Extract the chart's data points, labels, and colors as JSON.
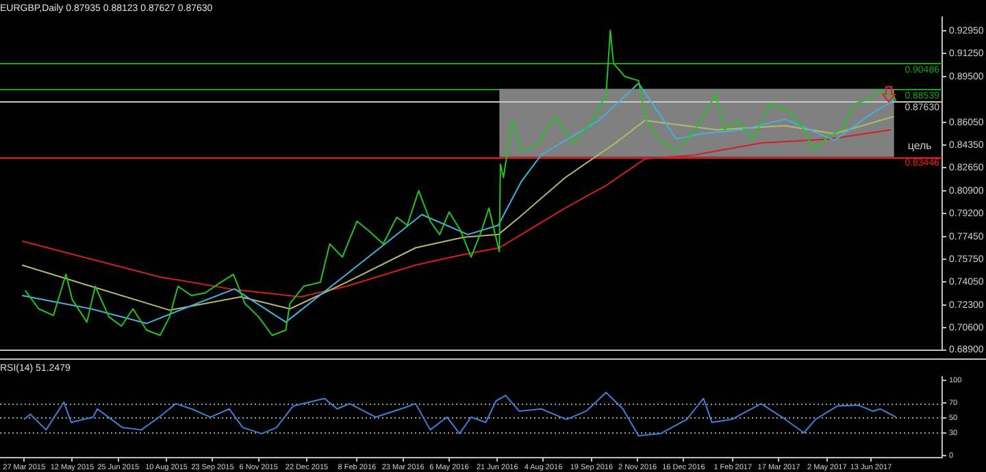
{
  "chart_data": [
    {
      "type": "line",
      "title": "EURGBP,Daily 0.87935 0.88123 0.87627 0.87630",
      "xlim": [
        "2015-03-04",
        "2017-08-20"
      ],
      "ylim": [
        0.689,
        0.94
      ],
      "yticks": [
        {
          "value": 0.9295,
          "label": "0.92950"
        },
        {
          "value": 0.9125,
          "label": "0.91250"
        },
        {
          "value": 0.895,
          "label": "0.89500"
        },
        {
          "value": 0.8605,
          "label": "0.86050"
        },
        {
          "value": 0.8435,
          "label": "0.84350"
        },
        {
          "value": 0.8265,
          "label": "0.82650"
        },
        {
          "value": 0.809,
          "label": "0.80900"
        },
        {
          "value": 0.792,
          "label": "0.79200"
        },
        {
          "value": 0.7745,
          "label": "0.77450"
        },
        {
          "value": 0.7575,
          "label": "0.75750"
        },
        {
          "value": 0.7405,
          "label": "0.74050"
        },
        {
          "value": 0.723,
          "label": "0.72300"
        },
        {
          "value": 0.706,
          "label": "0.70600"
        },
        {
          "value": 0.689,
          "label": "0.68900"
        }
      ],
      "tick_labels": "y",
      "marker": "none",
      "series": [
        {
          "color": "#22c422",
          "x": [
            "2015-03-28",
            "2015-04-10",
            "2015-04-24",
            "2015-05-06",
            "2015-05-12",
            "2015-05-26",
            "2015-06-03",
            "2015-06-16",
            "2015-06-28",
            "2015-07-09",
            "2015-07-22",
            "2015-08-04",
            "2015-08-13",
            "2015-08-21",
            "2015-09-03",
            "2015-09-16",
            "2015-10-01",
            "2015-10-13",
            "2015-10-24",
            "2015-11-06",
            "2015-11-19",
            "2015-12-02",
            "2015-12-06",
            "2015-12-19",
            "2016-01-04",
            "2016-01-13",
            "2016-01-25",
            "2016-02-08",
            "2016-02-19",
            "2016-03-04",
            "2016-03-17",
            "2016-03-27",
            "2016-04-07",
            "2016-04-18",
            "2016-04-27",
            "2016-05-06",
            "2016-05-17",
            "2016-05-27",
            "2016-06-06",
            "2016-06-13",
            "2016-06-23",
            "2016-06-24",
            "2016-06-27",
            "2016-07-05",
            "2016-07-14",
            "2016-07-28",
            "2016-08-15",
            "2016-09-02",
            "2016-09-20",
            "2016-10-03",
            "2016-10-07",
            "2016-10-10",
            "2016-10-21",
            "2016-11-03",
            "2016-11-10",
            "2016-11-22",
            "2016-12-09",
            "2016-12-27",
            "2017-01-16",
            "2017-01-24",
            "2017-02-06",
            "2017-02-20",
            "2017-03-09",
            "2017-03-27",
            "2017-04-10",
            "2017-04-19",
            "2017-05-01",
            "2017-05-15",
            "2017-05-29",
            "2017-06-12",
            "2017-06-19",
            "2017-06-28",
            "2017-07-05",
            "2017-07-07"
          ],
          "values": [
            0.734,
            0.72,
            0.715,
            0.746,
            0.727,
            0.71,
            0.737,
            0.714,
            0.707,
            0.72,
            0.704,
            0.7,
            0.714,
            0.737,
            0.73,
            0.732,
            0.74,
            0.746,
            0.724,
            0.714,
            0.7,
            0.704,
            0.724,
            0.737,
            0.74,
            0.769,
            0.759,
            0.786,
            0.779,
            0.769,
            0.789,
            0.783,
            0.809,
            0.786,
            0.776,
            0.793,
            0.779,
            0.759,
            0.779,
            0.796,
            0.763,
            0.829,
            0.819,
            0.862,
            0.839,
            0.843,
            0.865,
            0.845,
            0.862,
            0.882,
            0.93,
            0.905,
            0.895,
            0.892,
            0.862,
            0.848,
            0.839,
            0.855,
            0.882,
            0.855,
            0.862,
            0.848,
            0.875,
            0.868,
            0.855,
            0.839,
            0.848,
            0.855,
            0.875,
            0.878,
            0.885,
            0.882,
            0.88,
            0.876
          ]
        },
        {
          "color": "#808080",
          "x": [
            "2016-06-23",
            "2017-07-05"
          ],
          "values": [
            0.8854,
            0.8854
          ],
          "lower": [
            0.8345,
            0.8345
          ],
          "upper": [
            0.8854,
            0.8854
          ]
        },
        {
          "color": "#3fb4e0",
          "x": [
            "2015-03-25",
            "2015-05-30",
            "2015-07-22",
            "2015-08-26",
            "2015-10-14",
            "2015-12-02",
            "2016-01-29",
            "2016-04-10",
            "2016-05-24",
            "2016-06-22",
            "2016-07-14",
            "2016-08-02",
            "2016-09-26",
            "2016-11-03",
            "2016-12-09",
            "2017-01-02",
            "2017-02-10",
            "2017-03-23",
            "2017-05-09",
            "2017-06-15",
            "2017-07-05"
          ],
          "values": [
            0.73,
            0.72,
            0.709,
            0.72,
            0.735,
            0.71,
            0.746,
            0.791,
            0.776,
            0.783,
            0.816,
            0.836,
            0.862,
            0.89,
            0.848,
            0.852,
            0.855,
            0.863,
            0.847,
            0.868,
            0.877
          ]
        },
        {
          "color": "#b8b86a",
          "x": [
            "2015-03-25",
            "2015-05-30",
            "2015-08-13",
            "2015-10-20",
            "2015-12-06",
            "2016-01-29",
            "2016-04-04",
            "2016-05-20",
            "2016-06-22",
            "2016-07-12",
            "2016-08-25",
            "2016-10-12",
            "2016-11-09",
            "2017-01-16",
            "2017-03-23",
            "2017-05-09",
            "2017-07-05"
          ],
          "values": [
            0.753,
            0.737,
            0.719,
            0.729,
            0.72,
            0.74,
            0.766,
            0.774,
            0.776,
            0.789,
            0.819,
            0.845,
            0.862,
            0.855,
            0.858,
            0.852,
            0.865
          ]
        },
        {
          "color": "#d02020",
          "x": [
            "2015-03-25",
            "2015-08-04",
            "2015-10-10",
            "2015-12-16",
            "2016-01-29",
            "2016-04-04",
            "2016-05-20",
            "2016-06-23",
            "2016-08-25",
            "2016-10-03",
            "2016-11-09",
            "2016-12-27",
            "2017-02-28",
            "2017-05-05",
            "2017-07-02"
          ],
          "values": [
            0.771,
            0.744,
            0.735,
            0.729,
            0.737,
            0.753,
            0.761,
            0.766,
            0.796,
            0.813,
            0.833,
            0.836,
            0.845,
            0.848,
            0.855
          ]
        }
      ],
      "ref_lines": [
        {
          "axis": "y",
          "value": 0.90486,
          "label": "0.90486",
          "color": "#1fa01f"
        },
        {
          "axis": "y",
          "value": 0.88539,
          "label": "0.88539",
          "color": "#1fa01f"
        },
        {
          "axis": "y",
          "value": 0.8763,
          "label": "0.87630",
          "color": "#c8c8c8"
        },
        {
          "axis": "y",
          "value": 0.83446,
          "label": "0.83446",
          "color": "#ff1a1a"
        }
      ],
      "annotations": [
        "цель"
      ]
    },
    {
      "type": "line",
      "title": "RSI(14) 51.2479",
      "xlim": [
        "2015-03-04",
        "2017-08-20"
      ],
      "ylim": [
        -3,
        105
      ],
      "marker": "none",
      "xticks": [
        {
          "value": "2015-03-27",
          "label": "27 Mar 2015"
        },
        {
          "value": "2015-05-12",
          "label": "12 May 2015"
        },
        {
          "value": "2015-06-25",
          "label": "25 Jun 2015"
        },
        {
          "value": "2015-08-10",
          "label": "10 Aug 2015"
        },
        {
          "value": "2015-09-23",
          "label": "23 Sep 2015"
        },
        {
          "value": "2015-11-06",
          "label": "6 Nov 2015"
        },
        {
          "value": "2015-12-22",
          "label": "22 Dec 2015"
        },
        {
          "value": "2016-02-08",
          "label": "8 Feb 2016"
        },
        {
          "value": "2016-03-23",
          "label": "23 Mar 2016"
        },
        {
          "value": "2016-05-06",
          "label": "6 May 2016"
        },
        {
          "value": "2016-06-21",
          "label": "21 Jun 2016"
        },
        {
          "value": "2016-08-04",
          "label": "4 Aug 2016"
        },
        {
          "value": "2016-09-19",
          "label": "19 Sep 2016"
        },
        {
          "value": "2016-11-02",
          "label": "2 Nov 2016"
        },
        {
          "value": "2016-12-16",
          "label": "16 Dec 2016"
        },
        {
          "value": "2017-02-01",
          "label": "1 Feb 2017"
        },
        {
          "value": "2017-03-17",
          "label": "17 Mar 2017"
        },
        {
          "value": "2017-05-02",
          "label": "2 May 2017"
        },
        {
          "value": "2017-06-13",
          "label": "13 Jun 2017"
        }
      ],
      "yticks": [
        100,
        70,
        50,
        30,
        0
      ],
      "series": [
        {
          "color": "#3f7fd6",
          "x": [
            "2015-03-27",
            "2015-04-02",
            "2015-04-17",
            "2015-05-04",
            "2015-05-11",
            "2015-06-01",
            "2015-06-05",
            "2015-06-29",
            "2015-07-17",
            "2015-08-03",
            "2015-08-19",
            "2015-09-03",
            "2015-09-21",
            "2015-10-09",
            "2015-10-22",
            "2015-11-09",
            "2015-11-23",
            "2015-12-09",
            "2016-01-08",
            "2016-01-20",
            "2016-02-01",
            "2016-02-26",
            "2016-03-21",
            "2016-04-04",
            "2016-04-18",
            "2016-05-04",
            "2016-05-16",
            "2016-05-27",
            "2016-06-10",
            "2016-06-20",
            "2016-06-29",
            "2016-07-12",
            "2016-08-02",
            "2016-08-26",
            "2016-09-14",
            "2016-10-03",
            "2016-10-19",
            "2016-11-03",
            "2016-11-24",
            "2016-12-19",
            "2017-01-04",
            "2017-01-12",
            "2017-01-31",
            "2017-02-28",
            "2017-03-20",
            "2017-04-10",
            "2017-04-21",
            "2017-05-12",
            "2017-06-01",
            "2017-06-15",
            "2017-06-22",
            "2017-07-07"
          ],
          "values": [
            48,
            55,
            34,
            71,
            44,
            51,
            62,
            37,
            34,
            51,
            69,
            62,
            51,
            62,
            37,
            29,
            37,
            66,
            76,
            62,
            69,
            51,
            62,
            69,
            34,
            51,
            29,
            51,
            44,
            73,
            80,
            59,
            62,
            48,
            59,
            84,
            62,
            26,
            29,
            48,
            76,
            44,
            48,
            69,
            51,
            30,
            48,
            66,
            67,
            59,
            62,
            51
          ]
        }
      ],
      "ref_lines": [
        {
          "axis": "y",
          "value": 70,
          "color": "#a0a0a0",
          "line_style": "dotted"
        },
        {
          "axis": "y",
          "value": 50,
          "color": "#a0a0a0",
          "line_style": "dotted"
        },
        {
          "axis": "y",
          "value": 30,
          "color": "#a0a0a0",
          "line_style": "dotted"
        }
      ]
    }
  ]
}
